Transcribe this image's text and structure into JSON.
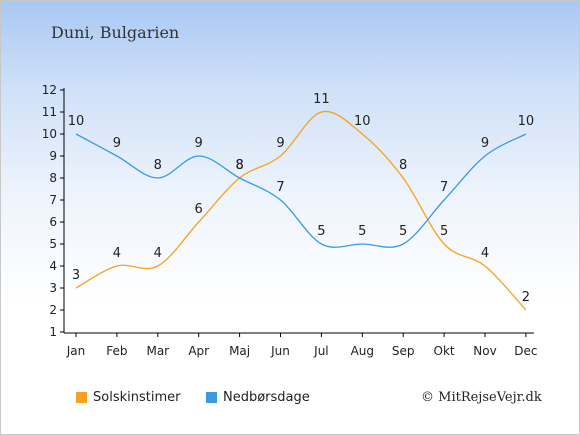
{
  "location": "Duni, Bulgarien",
  "copyright": "© MitRejseVejr.dk",
  "chart_data": {
    "type": "line",
    "categories": [
      "Jan",
      "Feb",
      "Mar",
      "Apr",
      "Maj",
      "Jun",
      "Jul",
      "Aug",
      "Sep",
      "Okt",
      "Nov",
      "Dec"
    ],
    "series": [
      {
        "name": "Solskinstimer",
        "color": "#f5a31c",
        "values": [
          3,
          4,
          4,
          6,
          8,
          9,
          11,
          10,
          8,
          5,
          4,
          2
        ]
      },
      {
        "name": "Nedbørsdage",
        "color": "#3a9be0",
        "values": [
          10,
          9,
          8,
          9,
          8,
          7,
          5,
          5,
          5,
          7,
          9,
          10
        ]
      }
    ],
    "yticks": [
      1,
      2,
      3,
      4,
      5,
      6,
      7,
      8,
      9,
      10,
      11,
      12
    ],
    "ylim": [
      1,
      12
    ],
    "legend_position": "bottom",
    "grid": false
  }
}
